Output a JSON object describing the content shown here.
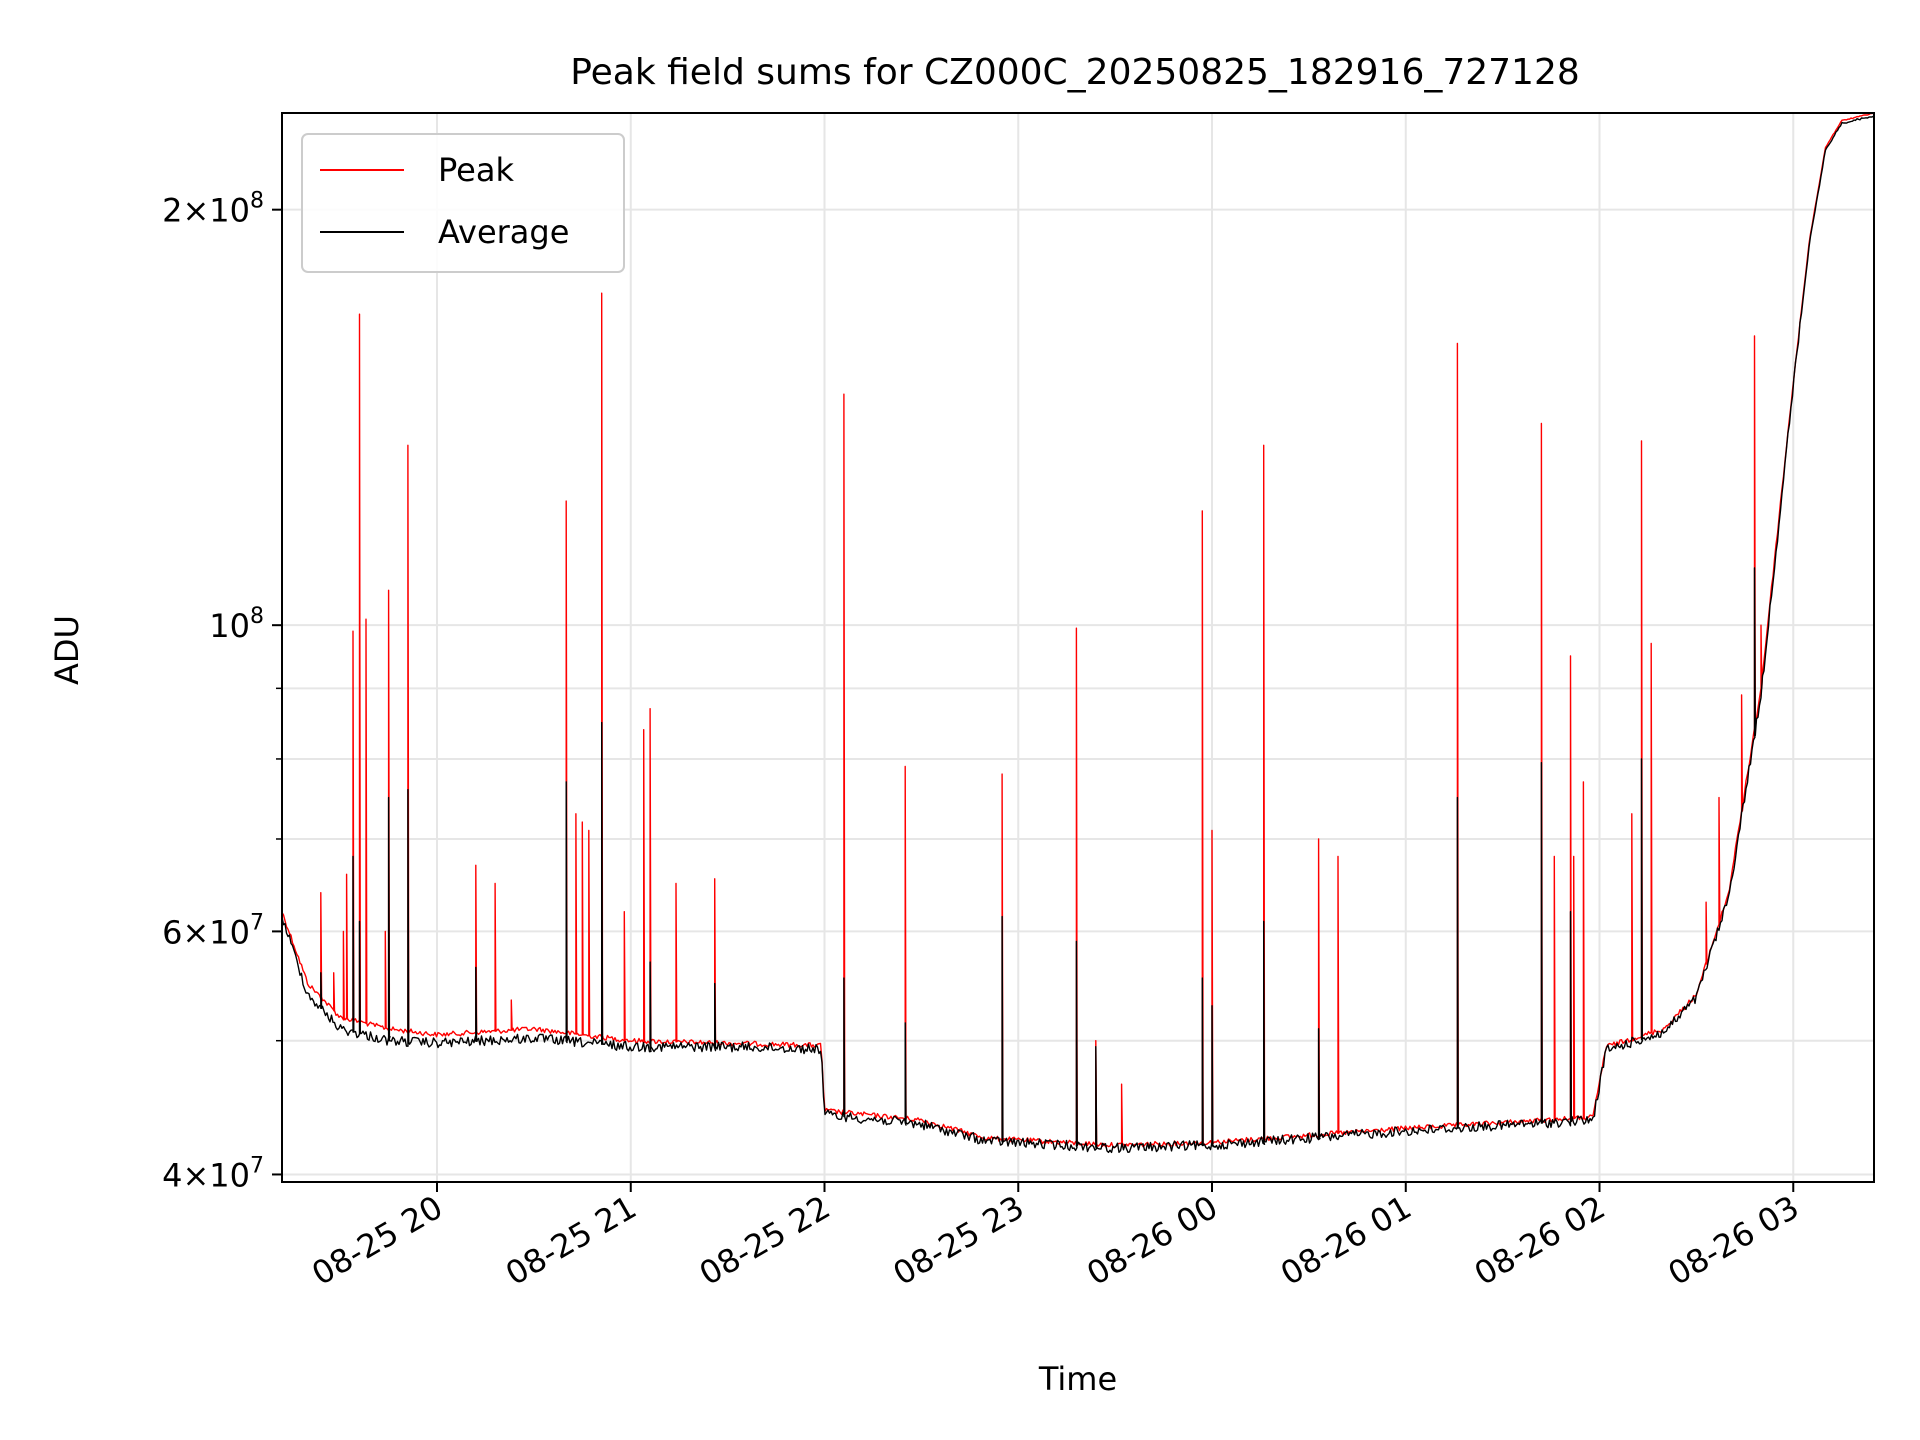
{
  "chart_data": {
    "type": "line",
    "title": "Peak field sums for CZ000C_20250825_182916_727128",
    "xlabel": "Time",
    "ylabel": "ADU",
    "y_scale": "log",
    "ylim": [
      39500000,
      235000000
    ],
    "xlim": [
      "2025-08-25 19:12",
      "2025-08-26 03:25"
    ],
    "grid": true,
    "legend_position": "upper left",
    "x_ticks": [
      {
        "t": "2025-08-25 20:00",
        "label": "08-25 20"
      },
      {
        "t": "2025-08-25 21:00",
        "label": "08-25 21"
      },
      {
        "t": "2025-08-25 22:00",
        "label": "08-25 22"
      },
      {
        "t": "2025-08-25 23:00",
        "label": "08-25 23"
      },
      {
        "t": "2025-08-26 00:00",
        "label": "08-26 00"
      },
      {
        "t": "2025-08-26 01:00",
        "label": "08-26 01"
      },
      {
        "t": "2025-08-26 02:00",
        "label": "08-26 02"
      },
      {
        "t": "2025-08-26 03:00",
        "label": "08-26 03"
      }
    ],
    "y_ticks_major": [
      {
        "value": 40000000,
        "mantissa": "4",
        "exponent": "7"
      },
      {
        "value": 60000000,
        "mantissa": "6",
        "exponent": "7"
      },
      {
        "value": 100000000,
        "mantissa": "",
        "exponent": "8"
      },
      {
        "value": 200000000,
        "mantissa": "2",
        "exponent": "8"
      }
    ],
    "y_ticks_minor": [
      50000000,
      70000000,
      80000000,
      90000000
    ],
    "series": [
      {
        "name": "Peak",
        "color": "#ff0000",
        "baseline": [
          [
            "2025-08-25 19:12",
            62000000
          ],
          [
            "2025-08-25 19:20",
            55000000
          ],
          [
            "2025-08-25 19:30",
            52000000
          ],
          [
            "2025-08-25 19:45",
            51000000
          ],
          [
            "2025-08-25 20:00",
            50500000
          ],
          [
            "2025-08-25 20:30",
            51000000
          ],
          [
            "2025-08-25 21:00",
            50000000
          ],
          [
            "2025-08-25 21:30",
            49800000
          ],
          [
            "2025-08-25 21:59",
            49600000
          ],
          [
            "2025-08-25 22:00",
            44500000
          ],
          [
            "2025-08-25 22:30",
            43800000
          ],
          [
            "2025-08-25 22:50",
            42500000
          ],
          [
            "2025-08-25 23:30",
            42000000
          ],
          [
            "2025-08-26 00:00",
            42200000
          ],
          [
            "2025-08-26 01:00",
            43200000
          ],
          [
            "2025-08-26 01:58",
            44000000
          ],
          [
            "2025-08-26 02:02",
            49500000
          ],
          [
            "2025-08-26 02:20",
            51000000
          ],
          [
            "2025-08-26 02:30",
            54000000
          ],
          [
            "2025-08-26 02:40",
            64000000
          ],
          [
            "2025-08-26 02:50",
            90000000
          ],
          [
            "2025-08-26 03:00",
            150000000
          ],
          [
            "2025-08-26 03:05",
            190000000
          ],
          [
            "2025-08-26 03:10",
            222000000
          ],
          [
            "2025-08-26 03:15",
            232000000
          ],
          [
            "2025-08-26 03:25",
            235000000
          ]
        ],
        "spikes": [
          [
            "2025-08-25 19:24",
            64000000
          ],
          [
            "2025-08-25 19:28",
            56000000
          ],
          [
            "2025-08-25 19:31",
            60000000
          ],
          [
            "2025-08-25 19:32",
            66000000
          ],
          [
            "2025-08-25 19:34",
            99000000
          ],
          [
            "2025-08-25 19:36",
            168000000
          ],
          [
            "2025-08-25 19:38",
            101000000
          ],
          [
            "2025-08-25 19:44",
            60000000
          ],
          [
            "2025-08-25 19:45",
            106000000
          ],
          [
            "2025-08-25 19:51",
            135000000
          ],
          [
            "2025-08-25 20:12",
            67000000
          ],
          [
            "2025-08-25 20:18",
            65000000
          ],
          [
            "2025-08-25 20:23",
            53500000
          ],
          [
            "2025-08-25 20:40",
            123000000
          ],
          [
            "2025-08-25 20:43",
            73000000
          ],
          [
            "2025-08-25 20:45",
            72000000
          ],
          [
            "2025-08-25 20:47",
            71000000
          ],
          [
            "2025-08-25 20:51",
            174000000
          ],
          [
            "2025-08-25 20:58",
            62000000
          ],
          [
            "2025-08-25 21:04",
            84000000
          ],
          [
            "2025-08-25 21:06",
            87000000
          ],
          [
            "2025-08-25 21:14",
            65000000
          ],
          [
            "2025-08-25 21:26",
            65500000
          ],
          [
            "2025-08-25 22:06",
            147000000
          ],
          [
            "2025-08-25 22:25",
            79000000
          ],
          [
            "2025-08-25 22:55",
            78000000
          ],
          [
            "2025-08-25 23:18",
            99500000
          ],
          [
            "2025-08-25 23:24",
            50000000
          ],
          [
            "2025-08-25 23:32",
            46500000
          ],
          [
            "2025-08-25 23:57",
            121000000
          ],
          [
            "2025-08-26 00:00",
            71000000
          ],
          [
            "2025-08-26 00:16",
            135000000
          ],
          [
            "2025-08-26 00:33",
            70000000
          ],
          [
            "2025-08-26 00:39",
            68000000
          ],
          [
            "2025-08-26 01:16",
            160000000
          ],
          [
            "2025-08-26 01:42",
            140000000
          ],
          [
            "2025-08-26 01:46",
            68000000
          ],
          [
            "2025-08-26 01:51",
            95000000
          ],
          [
            "2025-08-26 01:52",
            68000000
          ],
          [
            "2025-08-26 01:55",
            77000000
          ],
          [
            "2025-08-26 02:10",
            73000000
          ],
          [
            "2025-08-26 02:13",
            136000000
          ],
          [
            "2025-08-26 02:16",
            97000000
          ],
          [
            "2025-08-26 02:33",
            63000000
          ],
          [
            "2025-08-26 02:37",
            75000000
          ],
          [
            "2025-08-26 02:44",
            89000000
          ],
          [
            "2025-08-26 02:48",
            162000000
          ],
          [
            "2025-08-26 02:50",
            100000000
          ]
        ]
      },
      {
        "name": "Average",
        "color": "#000000",
        "baseline": [
          [
            "2025-08-25 19:12",
            61500000
          ],
          [
            "2025-08-25 19:20",
            54000000
          ],
          [
            "2025-08-25 19:30",
            51000000
          ],
          [
            "2025-08-25 19:45",
            50000000
          ],
          [
            "2025-08-25 20:00",
            49800000
          ],
          [
            "2025-08-25 20:30",
            50200000
          ],
          [
            "2025-08-25 21:00",
            49500000
          ],
          [
            "2025-08-25 21:30",
            49500000
          ],
          [
            "2025-08-25 21:59",
            49300000
          ],
          [
            "2025-08-25 22:00",
            44200000
          ],
          [
            "2025-08-25 22:30",
            43500000
          ],
          [
            "2025-08-25 22:50",
            42300000
          ],
          [
            "2025-08-25 23:30",
            41800000
          ],
          [
            "2025-08-26 00:00",
            42000000
          ],
          [
            "2025-08-26 01:00",
            43000000
          ],
          [
            "2025-08-26 01:58",
            43800000
          ],
          [
            "2025-08-26 02:02",
            49200000
          ],
          [
            "2025-08-26 02:20",
            50700000
          ],
          [
            "2025-08-26 02:30",
            53700000
          ],
          [
            "2025-08-26 02:40",
            63500000
          ],
          [
            "2025-08-26 02:50",
            89000000
          ],
          [
            "2025-08-26 03:00",
            149000000
          ],
          [
            "2025-08-26 03:05",
            189000000
          ],
          [
            "2025-08-26 03:10",
            221000000
          ],
          [
            "2025-08-26 03:15",
            231000000
          ],
          [
            "2025-08-26 03:25",
            234000000
          ]
        ],
        "spikes": [
          [
            "2025-08-25 19:24",
            56000000
          ],
          [
            "2025-08-25 19:34",
            68000000
          ],
          [
            "2025-08-25 19:36",
            61000000
          ],
          [
            "2025-08-25 19:45",
            75000000
          ],
          [
            "2025-08-25 19:51",
            76000000
          ],
          [
            "2025-08-25 20:12",
            56500000
          ],
          [
            "2025-08-25 20:40",
            77000000
          ],
          [
            "2025-08-25 20:51",
            85000000
          ],
          [
            "2025-08-25 21:06",
            57000000
          ],
          [
            "2025-08-25 21:26",
            55000000
          ],
          [
            "2025-08-25 22:06",
            55500000
          ],
          [
            "2025-08-25 22:25",
            51500000
          ],
          [
            "2025-08-25 22:55",
            61500000
          ],
          [
            "2025-08-25 23:18",
            59000000
          ],
          [
            "2025-08-25 23:24",
            49500000
          ],
          [
            "2025-08-25 23:57",
            55500000
          ],
          [
            "2025-08-26 00:00",
            53000000
          ],
          [
            "2025-08-26 00:16",
            61000000
          ],
          [
            "2025-08-26 00:33",
            51000000
          ],
          [
            "2025-08-26 01:16",
            75000000
          ],
          [
            "2025-08-26 01:42",
            79500000
          ],
          [
            "2025-08-26 01:51",
            62000000
          ],
          [
            "2025-08-26 02:13",
            80000000
          ],
          [
            "2025-08-26 02:48",
            110000000
          ]
        ]
      }
    ]
  }
}
